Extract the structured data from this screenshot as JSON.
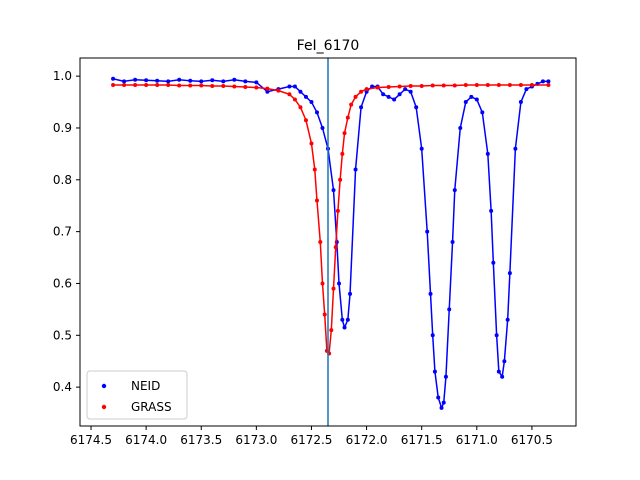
{
  "chart_data": {
    "type": "scatter",
    "title": "FeI_6170",
    "xlabel": "",
    "ylabel": "",
    "x_inverted": true,
    "xlim": [
      6174.6,
      6170.1
    ],
    "ylim": [
      0.325,
      1.035
    ],
    "x_ticks": [
      6174.5,
      6174.0,
      6173.5,
      6173.0,
      6172.5,
      6172.0,
      6171.5,
      6171.0,
      6170.5
    ],
    "x_tick_labels": [
      "6174.5",
      "6174.0",
      "6173.5",
      "6173.0",
      "6172.5",
      "6172.0",
      "6171.5",
      "6171.0",
      "6170.5"
    ],
    "y_ticks": [
      0.4,
      0.5,
      0.6,
      0.7,
      0.8,
      0.9,
      1.0
    ],
    "y_tick_labels": [
      "0.4",
      "0.5",
      "0.6",
      "0.7",
      "0.8",
      "0.9",
      "1.0"
    ],
    "grid": false,
    "legend_position": "lower-left",
    "vline": {
      "x": 6172.35,
      "color": "#1f77b4"
    },
    "series": [
      {
        "name": "NEID",
        "color": "#0000ff",
        "marker": "dot",
        "line": true,
        "x": [
          6174.3,
          6174.2,
          6174.1,
          6174.0,
          6173.9,
          6173.8,
          6173.7,
          6173.6,
          6173.5,
          6173.4,
          6173.3,
          6173.2,
          6173.1,
          6173.0,
          6172.9,
          6172.8,
          6172.7,
          6172.65,
          6172.6,
          6172.55,
          6172.5,
          6172.45,
          6172.4,
          6172.35,
          6172.3,
          6172.27,
          6172.25,
          6172.22,
          6172.2,
          6172.17,
          6172.15,
          6172.1,
          6172.05,
          6172.0,
          6171.95,
          6171.9,
          6171.85,
          6171.8,
          6171.75,
          6171.7,
          6171.65,
          6171.6,
          6171.55,
          6171.5,
          6171.45,
          6171.42,
          6171.4,
          6171.38,
          6171.35,
          6171.32,
          6171.3,
          6171.28,
          6171.25,
          6171.22,
          6171.2,
          6171.15,
          6171.1,
          6171.05,
          6171.0,
          6170.95,
          6170.9,
          6170.87,
          6170.85,
          6170.82,
          6170.8,
          6170.77,
          6170.75,
          6170.72,
          6170.7,
          6170.65,
          6170.6,
          6170.55,
          6170.5,
          6170.45,
          6170.4,
          6170.35
        ],
        "y": [
          0.995,
          0.99,
          0.993,
          0.992,
          0.991,
          0.99,
          0.993,
          0.991,
          0.99,
          0.992,
          0.99,
          0.993,
          0.99,
          0.988,
          0.97,
          0.975,
          0.98,
          0.98,
          0.97,
          0.96,
          0.95,
          0.93,
          0.9,
          0.86,
          0.78,
          0.68,
          0.6,
          0.53,
          0.515,
          0.53,
          0.58,
          0.82,
          0.94,
          0.97,
          0.98,
          0.98,
          0.965,
          0.96,
          0.955,
          0.965,
          0.975,
          0.97,
          0.94,
          0.86,
          0.7,
          0.58,
          0.5,
          0.43,
          0.38,
          0.36,
          0.37,
          0.42,
          0.55,
          0.68,
          0.78,
          0.9,
          0.95,
          0.96,
          0.955,
          0.93,
          0.85,
          0.74,
          0.64,
          0.5,
          0.43,
          0.42,
          0.45,
          0.53,
          0.62,
          0.86,
          0.95,
          0.975,
          0.98,
          0.985,
          0.99,
          0.99
        ]
      },
      {
        "name": "GRASS",
        "color": "#ff0000",
        "marker": "dot",
        "line": true,
        "x": [
          6174.3,
          6174.2,
          6174.1,
          6174.0,
          6173.9,
          6173.8,
          6173.7,
          6173.6,
          6173.5,
          6173.4,
          6173.3,
          6173.2,
          6173.1,
          6173.0,
          6172.9,
          6172.8,
          6172.7,
          6172.65,
          6172.6,
          6172.55,
          6172.5,
          6172.47,
          6172.45,
          6172.42,
          6172.4,
          6172.38,
          6172.36,
          6172.34,
          6172.32,
          6172.3,
          6172.28,
          6172.26,
          6172.24,
          6172.22,
          6172.2,
          6172.17,
          6172.14,
          6172.1,
          6172.05,
          6172.0,
          6171.9,
          6171.8,
          6171.7,
          6171.6,
          6171.5,
          6171.4,
          6171.3,
          6171.2,
          6171.1,
          6171.0,
          6170.9,
          6170.8,
          6170.7,
          6170.6,
          6170.5,
          6170.35
        ],
        "y": [
          0.983,
          0.983,
          0.983,
          0.983,
          0.983,
          0.983,
          0.982,
          0.982,
          0.982,
          0.981,
          0.981,
          0.98,
          0.979,
          0.978,
          0.976,
          0.972,
          0.965,
          0.955,
          0.94,
          0.915,
          0.87,
          0.82,
          0.76,
          0.68,
          0.6,
          0.54,
          0.47,
          0.465,
          0.51,
          0.59,
          0.67,
          0.74,
          0.8,
          0.85,
          0.89,
          0.92,
          0.945,
          0.96,
          0.97,
          0.975,
          0.978,
          0.979,
          0.98,
          0.981,
          0.981,
          0.982,
          0.982,
          0.982,
          0.983,
          0.983,
          0.983,
          0.983,
          0.983,
          0.983,
          0.983,
          0.983
        ]
      }
    ]
  }
}
